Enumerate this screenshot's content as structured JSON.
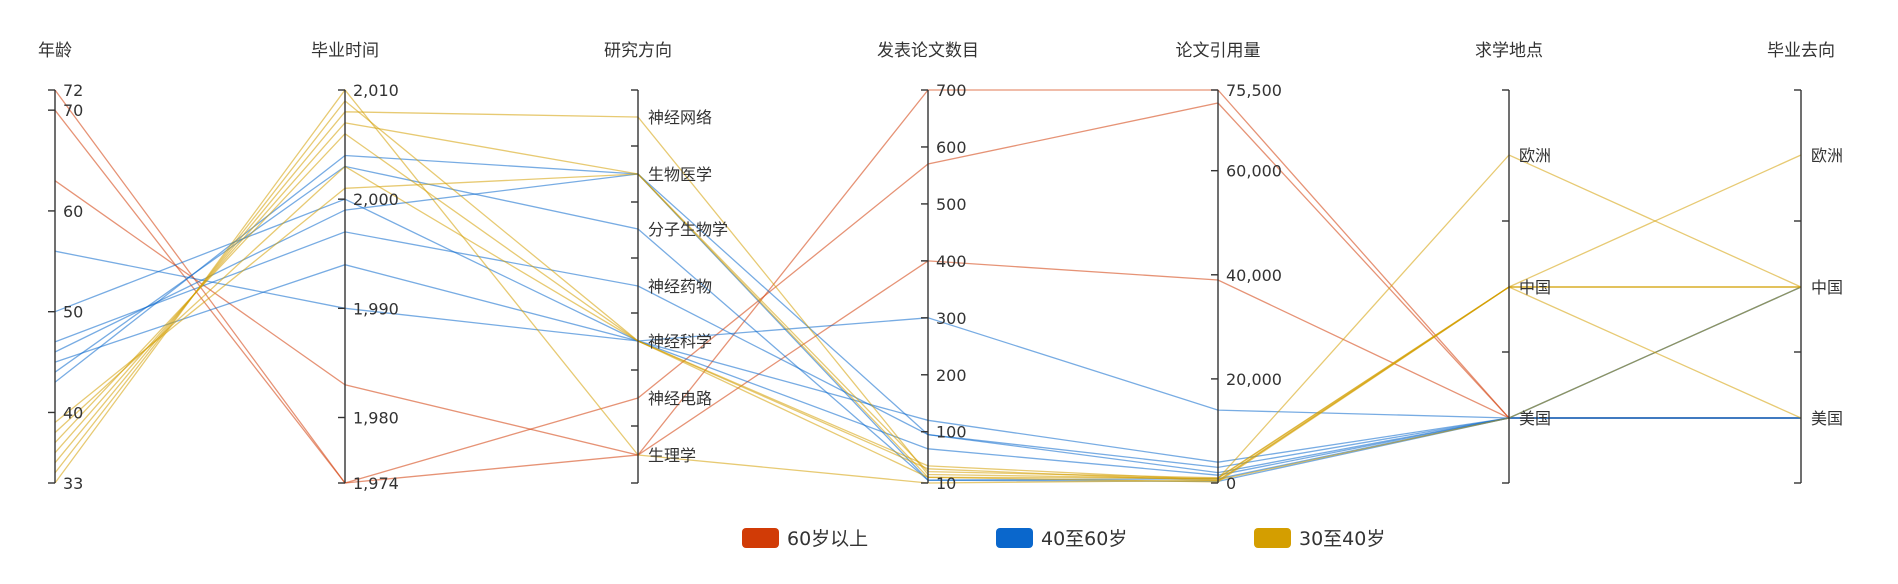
{
  "chart_data": {
    "type": "parallel",
    "axes": [
      {
        "name": "年龄",
        "kind": "value",
        "min": 33,
        "max": 72,
        "ticks": [
          33,
          40,
          50,
          60,
          70,
          72
        ]
      },
      {
        "name": "毕业时间",
        "kind": "value",
        "min": 1974,
        "max": 2010,
        "ticks": [
          1974,
          1980,
          1990,
          2000,
          2010
        ]
      },
      {
        "name": "研究方向",
        "kind": "category",
        "categories": [
          "生理学",
          "神经电路",
          "神经科学",
          "神经药物",
          "分子生物学",
          "生物医学",
          "神经网络"
        ]
      },
      {
        "name": "发表论文数目",
        "kind": "value",
        "min": 10,
        "max": 700,
        "ticks": [
          10,
          100,
          200,
          300,
          400,
          500,
          600,
          700
        ]
      },
      {
        "name": "论文引用量",
        "kind": "value",
        "min": 0,
        "max": 75500,
        "ticks": [
          0,
          20000,
          40000,
          60000,
          75500
        ]
      },
      {
        "name": "求学地点",
        "kind": "category",
        "categories": [
          "美国",
          "中国",
          "欧洲"
        ]
      },
      {
        "name": "毕业去向",
        "kind": "category",
        "categories": [
          "美国",
          "中国",
          "欧洲"
        ]
      }
    ],
    "groups": [
      {
        "name": "60岁以上",
        "color": "#d13b06",
        "records": [
          [
            72,
            1974,
            "生理学",
            700,
            75500,
            "美国",
            "美国"
          ],
          [
            70,
            1974,
            "神经电路",
            570,
            73000,
            "美国",
            "美国"
          ],
          [
            63,
            1983,
            "生理学",
            400,
            39000,
            "美国",
            "美国"
          ]
        ]
      },
      {
        "name": "40至60岁",
        "color": "#0a67cc",
        "records": [
          [
            56,
            1990,
            "神经科学",
            300,
            14000,
            "美国",
            "美国"
          ],
          [
            50,
            2000,
            "神经科学",
            120,
            4000,
            "美国",
            "中国"
          ],
          [
            47,
            1997,
            "神经药物",
            95,
            3000,
            "美国",
            "美国"
          ],
          [
            46,
            1999,
            "生物医学",
            95,
            2000,
            "美国",
            "中国"
          ],
          [
            44,
            2003,
            "分子生物学",
            15,
            800,
            "美国",
            "美国"
          ],
          [
            43,
            2004,
            "生物医学",
            15,
            300,
            "美国",
            "美国"
          ],
          [
            45,
            1994,
            "神经科学",
            70,
            1500,
            "美国",
            "美国"
          ]
        ]
      },
      {
        "name": "30至40岁",
        "color": "#d49e00",
        "records": [
          [
            33,
            2010,
            "生理学",
            10,
            500,
            "中国",
            "美国"
          ],
          [
            34,
            2009,
            "神经科学",
            20,
            200,
            "中国",
            "中国"
          ],
          [
            35,
            2008,
            "神经网络",
            25,
            800,
            "欧洲",
            "中国"
          ],
          [
            36,
            2007,
            "生物医学",
            30,
            1000,
            "中国",
            "中国"
          ],
          [
            37,
            2006,
            "神经科学",
            35,
            400,
            "中国",
            "欧洲"
          ],
          [
            38,
            2003,
            "神经科学",
            40,
            600,
            "美国",
            "中国"
          ],
          [
            39,
            2001,
            "生物医学",
            20,
            900,
            "中国",
            "中国"
          ]
        ]
      }
    ],
    "legend_position": "bottom-center",
    "legend": [
      "60岁以上",
      "40至60岁",
      "30至40岁"
    ]
  }
}
